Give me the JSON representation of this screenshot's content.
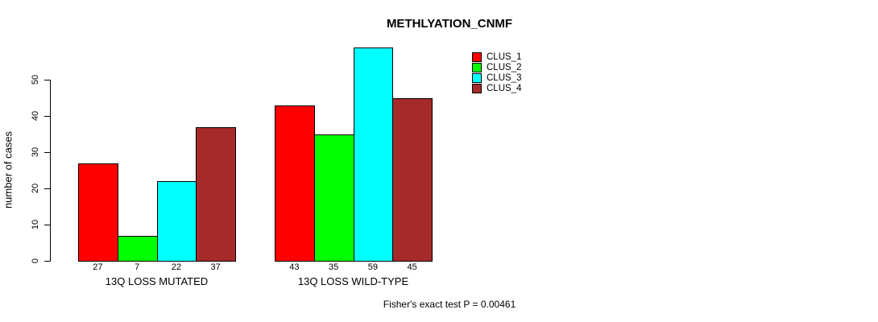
{
  "chart_data": {
    "type": "bar",
    "title": "METHLYATION_CNMF",
    "ylabel": "number of cases",
    "categories": [
      "13Q LOSS MUTATED",
      "13Q LOSS WILD-TYPE"
    ],
    "series": [
      {
        "name": "CLUS_1",
        "color": "#FF0000",
        "values": [
          27,
          43
        ]
      },
      {
        "name": "CLUS_2",
        "color": "#00FF00",
        "values": [
          7,
          35
        ]
      },
      {
        "name": "CLUS_3",
        "color": "#00FFFF",
        "values": [
          22,
          59
        ]
      },
      {
        "name": "CLUS_4",
        "color": "#A52A2A",
        "values": [
          37,
          45
        ]
      }
    ],
    "yticks": [
      0,
      10,
      20,
      30,
      40,
      50
    ],
    "ylim": [
      0,
      59
    ],
    "grid": false,
    "legend_position": "top-right",
    "bar_value_labels": true,
    "annotation": "Fisher's exact test P = 0.00461"
  }
}
